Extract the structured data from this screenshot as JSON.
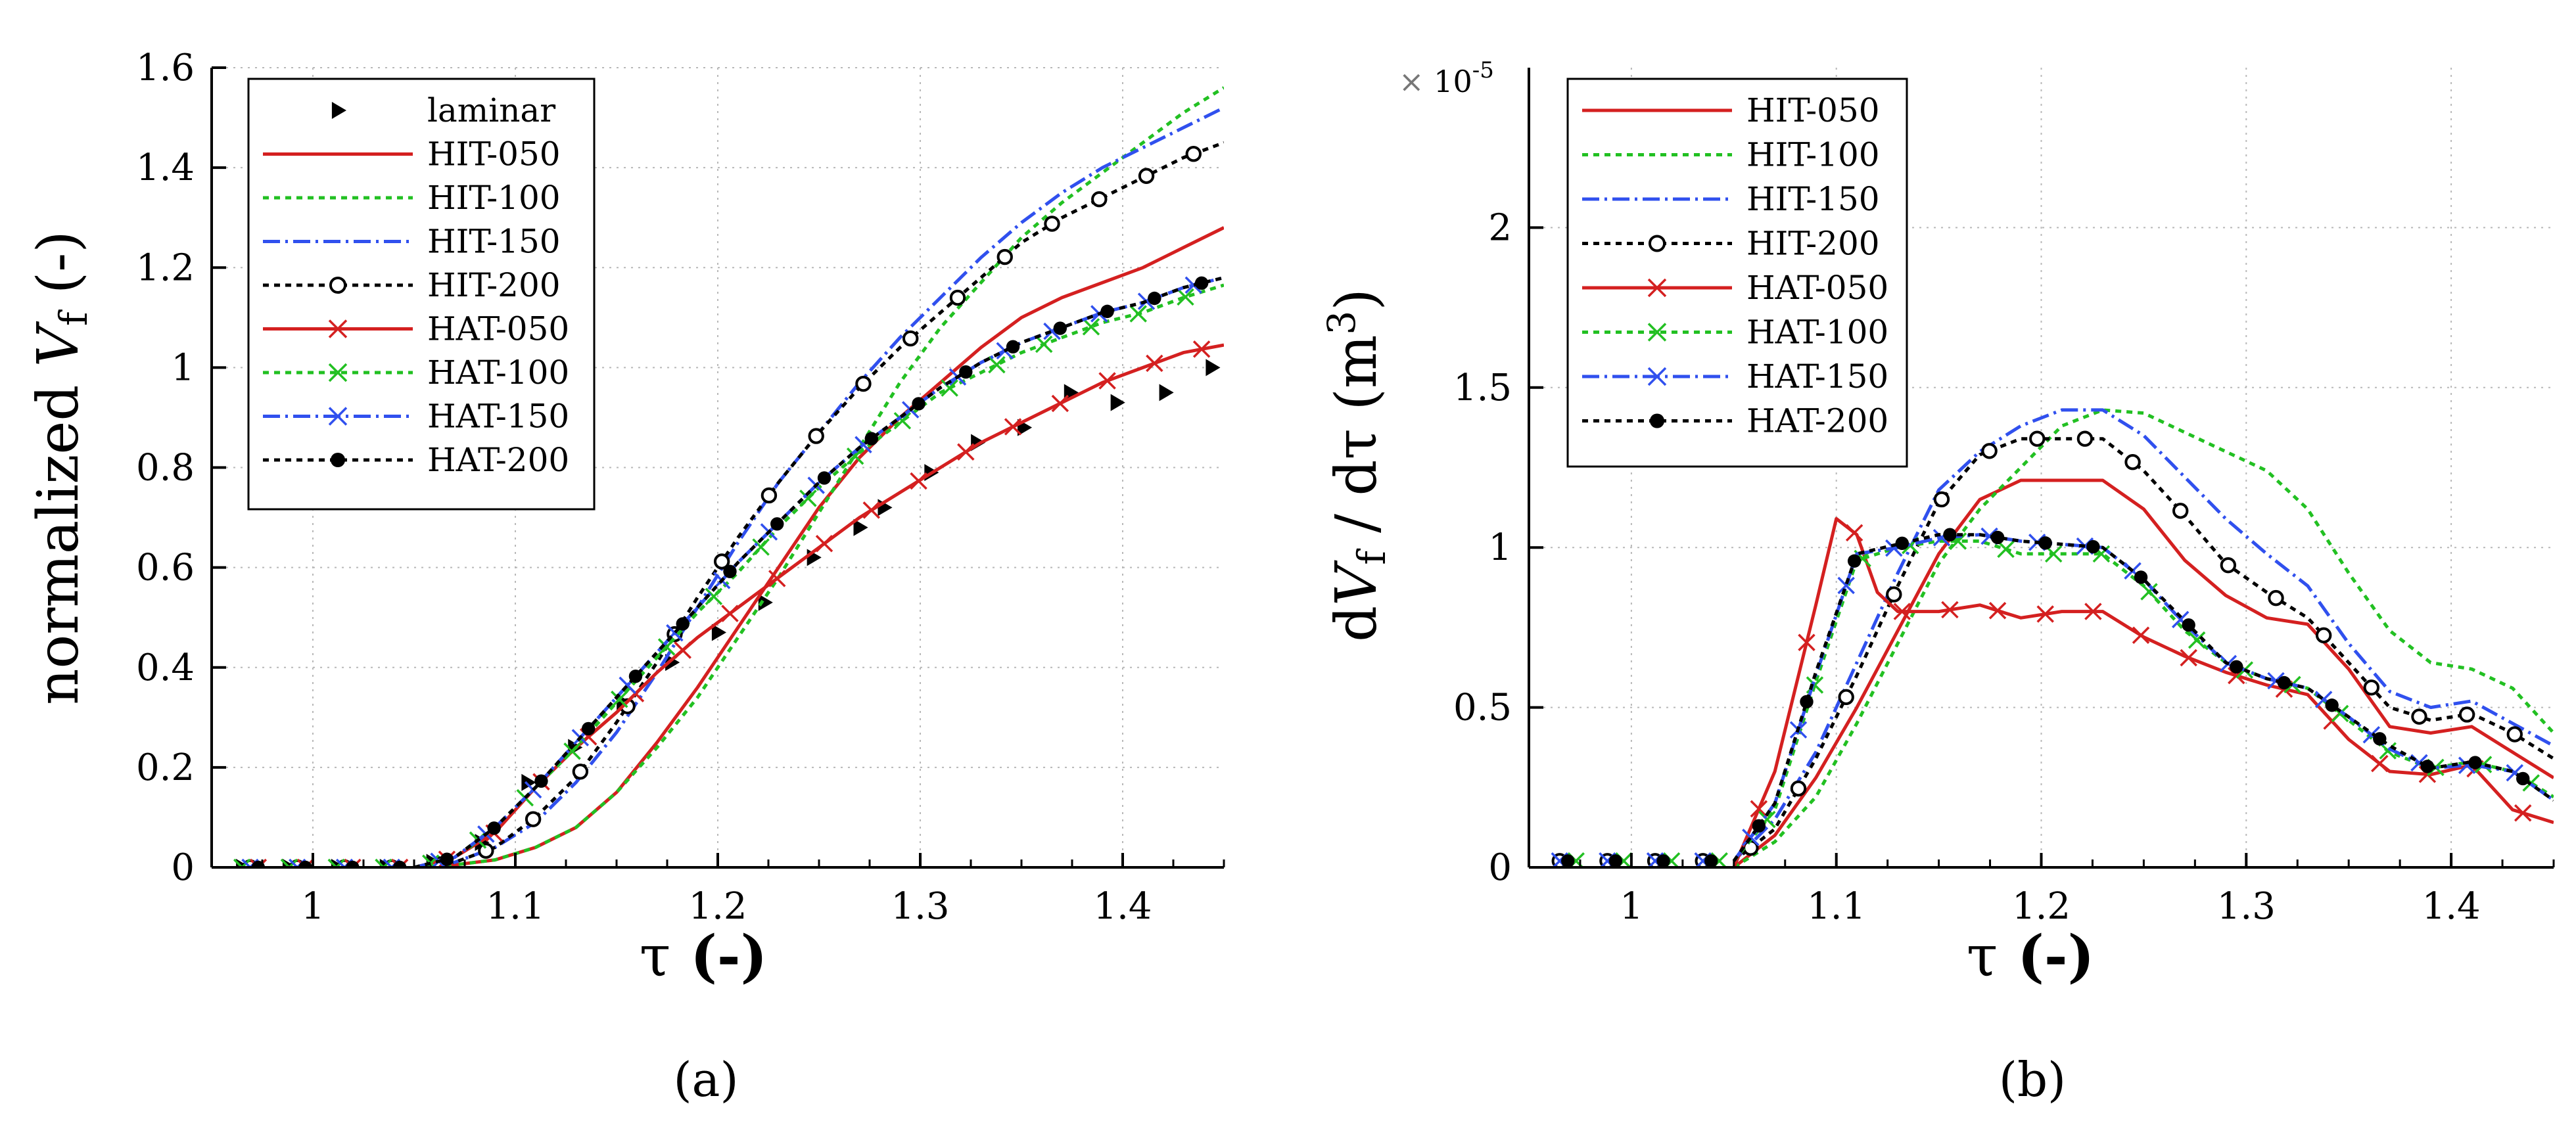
{
  "chart_data": [
    {
      "type": "line",
      "panel_label": "(a)",
      "xlabel": "τ (-)",
      "ylabel": "normalized V_f (-)",
      "ylabel_parts": {
        "prefix": "normalized ",
        "var": "V",
        "sub": "f",
        "suffix": " (-)"
      },
      "xlabel_parts": {
        "var": "τ",
        "suffix": " (-)"
      },
      "xlim": [
        0.95,
        1.45
      ],
      "ylim": [
        0,
        1.6
      ],
      "xticks": [
        1,
        1.1,
        1.2,
        1.3,
        1.4
      ],
      "xtick_labels": [
        "1",
        "1.1",
        "1.2",
        "1.3",
        "1.4"
      ],
      "yticks": [
        0,
        0.2,
        0.4,
        0.6,
        0.8,
        1,
        1.2,
        1.4,
        1.6
      ],
      "ytick_labels": [
        "0",
        "0.2",
        "0.4",
        "0.6",
        "0.8",
        "1",
        "1.2",
        "1.4",
        "1.6"
      ],
      "grid": true,
      "legend_position": "top-left",
      "series": [
        {
          "name": "laminar",
          "color": "#000000",
          "line": "none",
          "marker": "triangle-right",
          "markers_from_x": true,
          "x": [
            0.965,
            0.988,
            1.012,
            1.036,
            1.059,
            1.083,
            1.106,
            1.129,
            1.153,
            1.177,
            1.2,
            1.223,
            1.247,
            1.27,
            1.282,
            1.305,
            1.328,
            1.351,
            1.374,
            1.397,
            1.421,
            1.444
          ],
          "y": [
            0.0,
            0.0,
            0.0,
            0.0,
            0.01,
            0.05,
            0.17,
            0.24,
            0.33,
            0.41,
            0.47,
            0.53,
            0.62,
            0.68,
            0.72,
            0.79,
            0.85,
            0.88,
            0.95,
            0.93,
            0.95,
            1.0
          ]
        },
        {
          "name": "HIT-050",
          "color": "#d42020",
          "line": "solid",
          "marker": "none",
          "x": [
            1.05,
            1.07,
            1.09,
            1.11,
            1.13,
            1.15,
            1.17,
            1.19,
            1.21,
            1.23,
            1.25,
            1.27,
            1.29,
            1.31,
            1.33,
            1.35,
            1.37,
            1.39,
            1.41,
            1.43,
            1.45
          ],
          "y": [
            0.0,
            0.005,
            0.015,
            0.04,
            0.08,
            0.15,
            0.25,
            0.36,
            0.48,
            0.6,
            0.72,
            0.82,
            0.9,
            0.97,
            1.04,
            1.1,
            1.14,
            1.17,
            1.2,
            1.24,
            1.28
          ]
        },
        {
          "name": "HIT-100",
          "color": "#22c022",
          "line": "dotted",
          "marker": "none",
          "x": [
            1.05,
            1.07,
            1.09,
            1.11,
            1.13,
            1.15,
            1.17,
            1.19,
            1.21,
            1.23,
            1.25,
            1.27,
            1.29,
            1.31,
            1.33,
            1.35,
            1.37,
            1.39,
            1.41,
            1.43,
            1.45
          ],
          "y": [
            0.0,
            0.005,
            0.015,
            0.04,
            0.08,
            0.15,
            0.24,
            0.34,
            0.46,
            0.58,
            0.71,
            0.84,
            0.97,
            1.08,
            1.17,
            1.26,
            1.33,
            1.39,
            1.45,
            1.51,
            1.56
          ]
        },
        {
          "name": "HIT-150",
          "color": "#3050ee",
          "line": "dashdot",
          "marker": "none",
          "x": [
            1.05,
            1.07,
            1.09,
            1.11,
            1.13,
            1.15,
            1.17,
            1.19,
            1.21,
            1.23,
            1.25,
            1.27,
            1.29,
            1.31,
            1.33,
            1.35,
            1.37,
            1.39,
            1.41,
            1.43,
            1.45
          ],
          "y": [
            0.0,
            0.01,
            0.04,
            0.09,
            0.17,
            0.27,
            0.39,
            0.52,
            0.65,
            0.77,
            0.87,
            0.97,
            1.06,
            1.14,
            1.22,
            1.29,
            1.35,
            1.4,
            1.44,
            1.48,
            1.52
          ]
        },
        {
          "name": "HIT-200",
          "color": "#000000",
          "line": "dotted",
          "marker": "open-circle",
          "x": [
            1.05,
            1.07,
            1.09,
            1.11,
            1.13,
            1.15,
            1.17,
            1.19,
            1.21,
            1.23,
            1.25,
            1.27,
            1.29,
            1.31,
            1.33,
            1.35,
            1.37,
            1.39,
            1.41,
            1.43,
            1.45
          ],
          "y": [
            0.0,
            0.01,
            0.04,
            0.1,
            0.18,
            0.29,
            0.41,
            0.54,
            0.66,
            0.77,
            0.87,
            0.96,
            1.04,
            1.11,
            1.18,
            1.25,
            1.3,
            1.34,
            1.38,
            1.42,
            1.45
          ]
        },
        {
          "name": "HAT-050",
          "color": "#d42020",
          "line": "solid",
          "marker": "x",
          "x": [
            1.05,
            1.07,
            1.09,
            1.11,
            1.13,
            1.15,
            1.17,
            1.19,
            1.21,
            1.23,
            1.25,
            1.27,
            1.29,
            1.31,
            1.33,
            1.35,
            1.37,
            1.39,
            1.41,
            1.43,
            1.45
          ],
          "y": [
            0.0,
            0.02,
            0.07,
            0.16,
            0.24,
            0.31,
            0.39,
            0.46,
            0.52,
            0.58,
            0.64,
            0.7,
            0.75,
            0.8,
            0.85,
            0.89,
            0.93,
            0.97,
            1.0,
            1.03,
            1.045
          ]
        },
        {
          "name": "HAT-100",
          "color": "#22c022",
          "line": "dotted",
          "marker": "x",
          "x": [
            1.05,
            1.07,
            1.09,
            1.11,
            1.13,
            1.15,
            1.17,
            1.19,
            1.21,
            1.23,
            1.25,
            1.27,
            1.29,
            1.31,
            1.33,
            1.35,
            1.37,
            1.39,
            1.41,
            1.43,
            1.45
          ],
          "y": [
            0.0,
            0.02,
            0.08,
            0.16,
            0.24,
            0.33,
            0.42,
            0.51,
            0.59,
            0.68,
            0.76,
            0.83,
            0.89,
            0.95,
            0.99,
            1.03,
            1.06,
            1.09,
            1.11,
            1.14,
            1.165
          ]
        },
        {
          "name": "HAT-150",
          "color": "#3050ee",
          "line": "dashdot",
          "marker": "x",
          "x": [
            1.05,
            1.07,
            1.09,
            1.11,
            1.13,
            1.15,
            1.17,
            1.19,
            1.21,
            1.23,
            1.25,
            1.27,
            1.29,
            1.31,
            1.33,
            1.35,
            1.37,
            1.39,
            1.41,
            1.43,
            1.45
          ],
          "y": [
            0.0,
            0.02,
            0.08,
            0.16,
            0.25,
            0.34,
            0.43,
            0.52,
            0.61,
            0.69,
            0.77,
            0.84,
            0.9,
            0.96,
            1.01,
            1.05,
            1.08,
            1.11,
            1.13,
            1.16,
            1.18
          ]
        },
        {
          "name": "HAT-200",
          "color": "#000000",
          "line": "dotted",
          "marker": "filled-circle",
          "x": [
            1.05,
            1.07,
            1.09,
            1.11,
            1.13,
            1.15,
            1.17,
            1.19,
            1.21,
            1.23,
            1.25,
            1.27,
            1.29,
            1.31,
            1.33,
            1.35,
            1.37,
            1.39,
            1.41,
            1.43,
            1.45
          ],
          "y": [
            0.0,
            0.02,
            0.08,
            0.16,
            0.25,
            0.34,
            0.43,
            0.52,
            0.61,
            0.69,
            0.77,
            0.84,
            0.9,
            0.96,
            1.01,
            1.05,
            1.08,
            1.11,
            1.13,
            1.16,
            1.18
          ]
        }
      ]
    },
    {
      "type": "line",
      "panel_label": "(b)",
      "xlabel": "τ (-)",
      "ylabel": "dV_f / dτ (m^3)",
      "ylabel_parts": {
        "prefix": "d",
        "var": "V",
        "sub": "f",
        "middle": " / dτ (m",
        "sup": "3",
        "suffix": ")"
      },
      "xlabel_parts": {
        "var": "τ",
        "suffix": " (-)"
      },
      "multiplier": {
        "symbol": "×",
        "base": "10",
        "exp": "-5"
      },
      "xlim": [
        0.95,
        1.45
      ],
      "ylim": [
        0,
        2.5
      ],
      "xticks": [
        1,
        1.1,
        1.2,
        1.3,
        1.4
      ],
      "xtick_labels": [
        "1",
        "1.1",
        "1.2",
        "1.3",
        "1.4"
      ],
      "yticks": [
        0,
        0.5,
        1,
        1.5,
        2
      ],
      "ytick_labels": [
        "0",
        "0.5",
        "1",
        "1.5",
        "2"
      ],
      "grid": true,
      "legend_position": "top-left",
      "series": [
        {
          "name": "HIT-050",
          "color": "#d42020",
          "line": "solid",
          "marker": "none",
          "x": [
            1.05,
            1.07,
            1.09,
            1.11,
            1.13,
            1.15,
            1.17,
            1.19,
            1.21,
            1.23,
            1.25,
            1.27,
            1.29,
            1.31,
            1.33,
            1.35,
            1.37,
            1.39,
            1.41,
            1.43,
            1.45
          ],
          "y": [
            0.0,
            0.1,
            0.28,
            0.5,
            0.74,
            0.98,
            1.15,
            1.21,
            1.21,
            1.21,
            1.12,
            0.96,
            0.85,
            0.78,
            0.76,
            0.62,
            0.44,
            0.42,
            0.44,
            0.36,
            0.28
          ]
        },
        {
          "name": "HIT-100",
          "color": "#22c022",
          "line": "dotted",
          "marker": "none",
          "x": [
            1.05,
            1.07,
            1.09,
            1.11,
            1.13,
            1.15,
            1.17,
            1.19,
            1.21,
            1.23,
            1.25,
            1.27,
            1.29,
            1.31,
            1.33,
            1.35,
            1.37,
            1.39,
            1.41,
            1.43,
            1.45
          ],
          "y": [
            0.0,
            0.08,
            0.22,
            0.45,
            0.7,
            0.95,
            1.12,
            1.25,
            1.38,
            1.43,
            1.42,
            1.36,
            1.3,
            1.24,
            1.12,
            0.92,
            0.74,
            0.64,
            0.62,
            0.56,
            0.42
          ]
        },
        {
          "name": "HIT-150",
          "color": "#3050ee",
          "line": "dashdot",
          "marker": "none",
          "x": [
            1.05,
            1.07,
            1.09,
            1.11,
            1.13,
            1.15,
            1.17,
            1.19,
            1.21,
            1.23,
            1.25,
            1.27,
            1.29,
            1.31,
            1.33,
            1.35,
            1.37,
            1.39,
            1.41,
            1.43,
            1.45
          ],
          "y": [
            0.02,
            0.15,
            0.36,
            0.64,
            0.92,
            1.18,
            1.3,
            1.38,
            1.43,
            1.43,
            1.35,
            1.22,
            1.09,
            0.98,
            0.88,
            0.7,
            0.55,
            0.5,
            0.52,
            0.45,
            0.38
          ]
        },
        {
          "name": "HIT-200",
          "color": "#000000",
          "line": "dotted",
          "marker": "open-circle",
          "x": [
            1.05,
            1.07,
            1.09,
            1.11,
            1.13,
            1.15,
            1.17,
            1.19,
            1.21,
            1.23,
            1.25,
            1.27,
            1.29,
            1.31,
            1.33,
            1.35,
            1.37,
            1.39,
            1.41,
            1.43,
            1.45
          ],
          "y": [
            0.02,
            0.12,
            0.34,
            0.6,
            0.88,
            1.14,
            1.29,
            1.34,
            1.34,
            1.34,
            1.24,
            1.1,
            0.95,
            0.86,
            0.78,
            0.64,
            0.5,
            0.46,
            0.48,
            0.42,
            0.34
          ]
        },
        {
          "name": "HAT-050",
          "color": "#d42020",
          "line": "solid",
          "marker": "x",
          "x": [
            1.05,
            1.07,
            1.09,
            1.1,
            1.11,
            1.12,
            1.13,
            1.15,
            1.17,
            1.19,
            1.21,
            1.23,
            1.25,
            1.27,
            1.29,
            1.31,
            1.33,
            1.35,
            1.37,
            1.39,
            1.41,
            1.43,
            1.45
          ],
          "y": [
            0.0,
            0.3,
            0.82,
            1.09,
            1.04,
            0.86,
            0.8,
            0.8,
            0.82,
            0.78,
            0.8,
            0.8,
            0.72,
            0.66,
            0.61,
            0.57,
            0.54,
            0.4,
            0.3,
            0.29,
            0.32,
            0.18,
            0.14
          ]
        },
        {
          "name": "HAT-100",
          "color": "#22c022",
          "line": "dotted",
          "marker": "x",
          "x": [
            1.05,
            1.07,
            1.09,
            1.11,
            1.13,
            1.15,
            1.17,
            1.19,
            1.21,
            1.23,
            1.25,
            1.27,
            1.29,
            1.31,
            1.33,
            1.35,
            1.37,
            1.39,
            1.41,
            1.43,
            1.45
          ],
          "y": [
            0.02,
            0.18,
            0.58,
            0.96,
            1.0,
            1.02,
            1.02,
            0.98,
            0.98,
            0.98,
            0.88,
            0.74,
            0.64,
            0.59,
            0.56,
            0.46,
            0.36,
            0.31,
            0.33,
            0.3,
            0.22
          ]
        },
        {
          "name": "HAT-150",
          "color": "#3050ee",
          "line": "dashdot",
          "marker": "x",
          "x": [
            1.05,
            1.07,
            1.09,
            1.11,
            1.13,
            1.15,
            1.17,
            1.19,
            1.21,
            1.23,
            1.25,
            1.27,
            1.29,
            1.31,
            1.33,
            1.35,
            1.37,
            1.39,
            1.41,
            1.43,
            1.45
          ],
          "y": [
            0.02,
            0.2,
            0.6,
            0.98,
            1.0,
            1.03,
            1.04,
            1.02,
            1.01,
            1.0,
            0.9,
            0.76,
            0.64,
            0.59,
            0.56,
            0.47,
            0.37,
            0.31,
            0.32,
            0.3,
            0.21
          ]
        },
        {
          "name": "HAT-200",
          "color": "#000000",
          "line": "dotted",
          "marker": "filled-circle",
          "x": [
            1.05,
            1.07,
            1.09,
            1.11,
            1.13,
            1.15,
            1.17,
            1.19,
            1.21,
            1.23,
            1.25,
            1.27,
            1.29,
            1.31,
            1.33,
            1.35,
            1.37,
            1.39,
            1.41,
            1.43,
            1.45
          ],
          "y": [
            0.02,
            0.2,
            0.61,
            0.98,
            1.01,
            1.04,
            1.04,
            1.02,
            1.01,
            1.0,
            0.9,
            0.77,
            0.64,
            0.59,
            0.56,
            0.47,
            0.38,
            0.31,
            0.33,
            0.3,
            0.21
          ]
        }
      ]
    }
  ]
}
